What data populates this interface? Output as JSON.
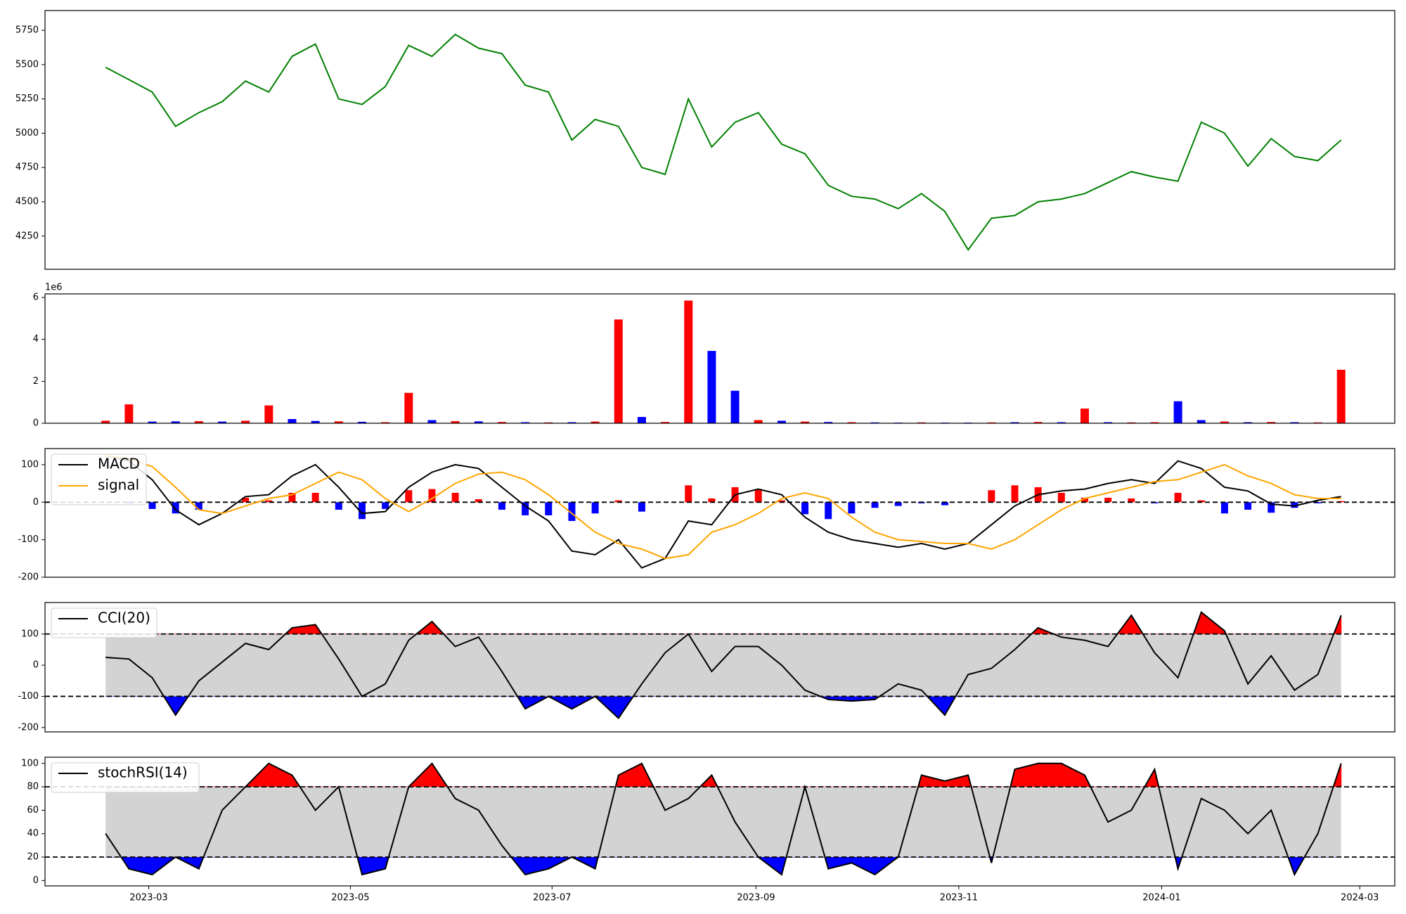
{
  "chart_data": [
    {
      "type": "line",
      "color": "green",
      "xlim": [
        -2.6,
        55.3
      ],
      "ylim": [
        4008,
        5894
      ],
      "yticks": [
        4250,
        4500,
        4750,
        5000,
        5250,
        5500,
        5750
      ],
      "values": [
        5480,
        5390,
        5300,
        5050,
        5150,
        5230,
        5380,
        5300,
        5560,
        5650,
        5250,
        5210,
        5340,
        5640,
        5560,
        5720,
        5620,
        5580,
        5350,
        5300,
        4950,
        5100,
        5050,
        4750,
        4700,
        5250,
        4900,
        5080,
        5150,
        4920,
        4850,
        4620,
        4540,
        4520,
        4450,
        4560,
        4430,
        4150,
        4380,
        4400,
        4500,
        4520,
        4560,
        4640,
        4720,
        4680,
        4650,
        5080,
        5000,
        4760,
        4960,
        4830,
        4800,
        4950
      ]
    },
    {
      "type": "bar",
      "xlim": [
        -2.6,
        55.3
      ],
      "ylim": [
        0,
        6170000
      ],
      "offset_label": "1e6",
      "yticks": [
        0,
        {
          "value": 2000000,
          "label": "2"
        },
        {
          "value": 4000000,
          "label": "4"
        },
        {
          "value": 6000000,
          "label": "6"
        }
      ],
      "values": [
        120000,
        900000,
        80000,
        90000,
        100000,
        80000,
        120000,
        850000,
        200000,
        110000,
        90000,
        70000,
        50000,
        1450000,
        150000,
        100000,
        90000,
        60000,
        50000,
        40000,
        50000,
        80000,
        4950000,
        300000,
        60000,
        5850000,
        3450000,
        1550000,
        150000,
        120000,
        80000,
        60000,
        50000,
        40000,
        30000,
        40000,
        30000,
        30000,
        40000,
        50000,
        60000,
        50000,
        700000,
        50000,
        40000,
        50000,
        1050000,
        150000,
        80000,
        50000,
        60000,
        50000,
        40000,
        2550000
      ],
      "colors": [
        "red",
        "red",
        "blue",
        "blue",
        "red",
        "blue",
        "red",
        "red",
        "blue",
        "blue",
        "red",
        "blue",
        "red",
        "red",
        "blue",
        "red",
        "blue",
        "red",
        "blue",
        "red",
        "blue",
        "red",
        "red",
        "blue",
        "red",
        "red",
        "blue",
        "blue",
        "red",
        "blue",
        "red",
        "blue",
        "red",
        "blue",
        "blue",
        "red",
        "blue",
        "blue",
        "red",
        "blue",
        "red",
        "blue",
        "red",
        "blue",
        "red",
        "red",
        "blue",
        "blue",
        "red",
        "blue",
        "red",
        "blue",
        "red",
        "red"
      ]
    },
    {
      "type": "macd",
      "xlim": [
        -2.6,
        55.3
      ],
      "ylim": [
        -200,
        143
      ],
      "yticks": [
        -200,
        -100,
        0,
        100
      ],
      "hline": 0,
      "histogram_colors": {
        "positive": "red",
        "negative": "blue"
      },
      "histogram": [
        0,
        -3,
        -18,
        -30,
        -20,
        0,
        12,
        5,
        25,
        25,
        -20,
        -45,
        -18,
        32,
        35,
        25,
        8,
        -20,
        -35,
        -35,
        -50,
        -30,
        5,
        -25,
        0,
        45,
        10,
        40,
        33,
        5,
        -32,
        -45,
        -30,
        -15,
        -10,
        -3,
        -8,
        0,
        32,
        45,
        40,
        25,
        12,
        12,
        10,
        -3,
        25,
        5,
        -30,
        -20,
        -28,
        -15,
        -3,
        3
      ],
      "series": [
        {
          "name": "MACD",
          "color": "black",
          "values": [
            125,
            110,
            60,
            -20,
            -60,
            -30,
            15,
            20,
            70,
            100,
            40,
            -30,
            -25,
            40,
            80,
            100,
            90,
            40,
            -10,
            -50,
            -130,
            -140,
            -100,
            -175,
            -150,
            -50,
            -60,
            20,
            35,
            20,
            -40,
            -80,
            -100,
            -110,
            -120,
            -110,
            -125,
            -110,
            -60,
            -10,
            20,
            30,
            35,
            50,
            60,
            50,
            110,
            90,
            40,
            30,
            -5,
            -10,
            5,
            15
          ]
        },
        {
          "name": "signal",
          "color": "orange",
          "values": [
            125,
            115,
            95,
            40,
            -20,
            -30,
            -10,
            10,
            20,
            50,
            80,
            60,
            10,
            -25,
            10,
            50,
            75,
            80,
            60,
            20,
            -30,
            -80,
            -110,
            -125,
            -150,
            -140,
            -80,
            -60,
            -30,
            10,
            25,
            10,
            -40,
            -80,
            -100,
            -105,
            -110,
            -110,
            -125,
            -100,
            -60,
            -20,
            10,
            25,
            40,
            55,
            60,
            80,
            100,
            70,
            50,
            20,
            10,
            10
          ]
        }
      ]
    },
    {
      "type": "band",
      "xlim": [
        -2.6,
        55.3
      ],
      "ylim": [
        -214,
        201
      ],
      "yticks": [
        -200,
        -100,
        0,
        100
      ],
      "bands": [
        -100,
        100
      ],
      "band_colors": {
        "above": "red",
        "below": "blue",
        "inside": "lightgray"
      },
      "series": [
        {
          "name": "CCI(20)",
          "color": "black",
          "values": [
            25,
            20,
            -40,
            -160,
            -50,
            10,
            70,
            50,
            120,
            130,
            20,
            -100,
            -60,
            80,
            140,
            60,
            90,
            -20,
            -140,
            -100,
            -140,
            -100,
            -170,
            -60,
            40,
            100,
            -20,
            60,
            60,
            0,
            -80,
            -110,
            -115,
            -110,
            -60,
            -80,
            -160,
            -30,
            -10,
            50,
            120,
            90,
            80,
            60,
            160,
            40,
            -40,
            170,
            110,
            -60,
            30,
            -80,
            -30,
            160
          ]
        }
      ]
    },
    {
      "type": "band",
      "xlim": [
        -2.6,
        55.3
      ],
      "ylim": [
        -4.6,
        105.3
      ],
      "yticks": [
        0,
        20,
        40,
        60,
        80,
        100
      ],
      "bands": [
        20,
        80
      ],
      "band_colors": {
        "above": "red",
        "below": "blue",
        "inside": "lightgray"
      },
      "xticks": [
        {
          "value": 1.85,
          "label": "2023-03"
        },
        {
          "value": 10.5,
          "label": "2023-05"
        },
        {
          "value": 19.15,
          "label": "2023-07"
        },
        {
          "value": 27.9,
          "label": "2023-09"
        },
        {
          "value": 36.6,
          "label": "2023-11"
        },
        {
          "value": 45.3,
          "label": "2024-01"
        },
        {
          "value": 53.8,
          "label": "2024-03"
        }
      ],
      "series": [
        {
          "name": "stochRSI(14)",
          "color": "black",
          "values": [
            40,
            10,
            5,
            20,
            10,
            60,
            80,
            100,
            90,
            60,
            80,
            5,
            10,
            80,
            100,
            70,
            60,
            30,
            5,
            10,
            20,
            10,
            90,
            100,
            60,
            70,
            90,
            50,
            20,
            5,
            80,
            10,
            15,
            5,
            20,
            90,
            85,
            90,
            15,
            95,
            100,
            100,
            90,
            50,
            60,
            95,
            10,
            70,
            60,
            40,
            60,
            5,
            40,
            100
          ]
        }
      ]
    }
  ]
}
